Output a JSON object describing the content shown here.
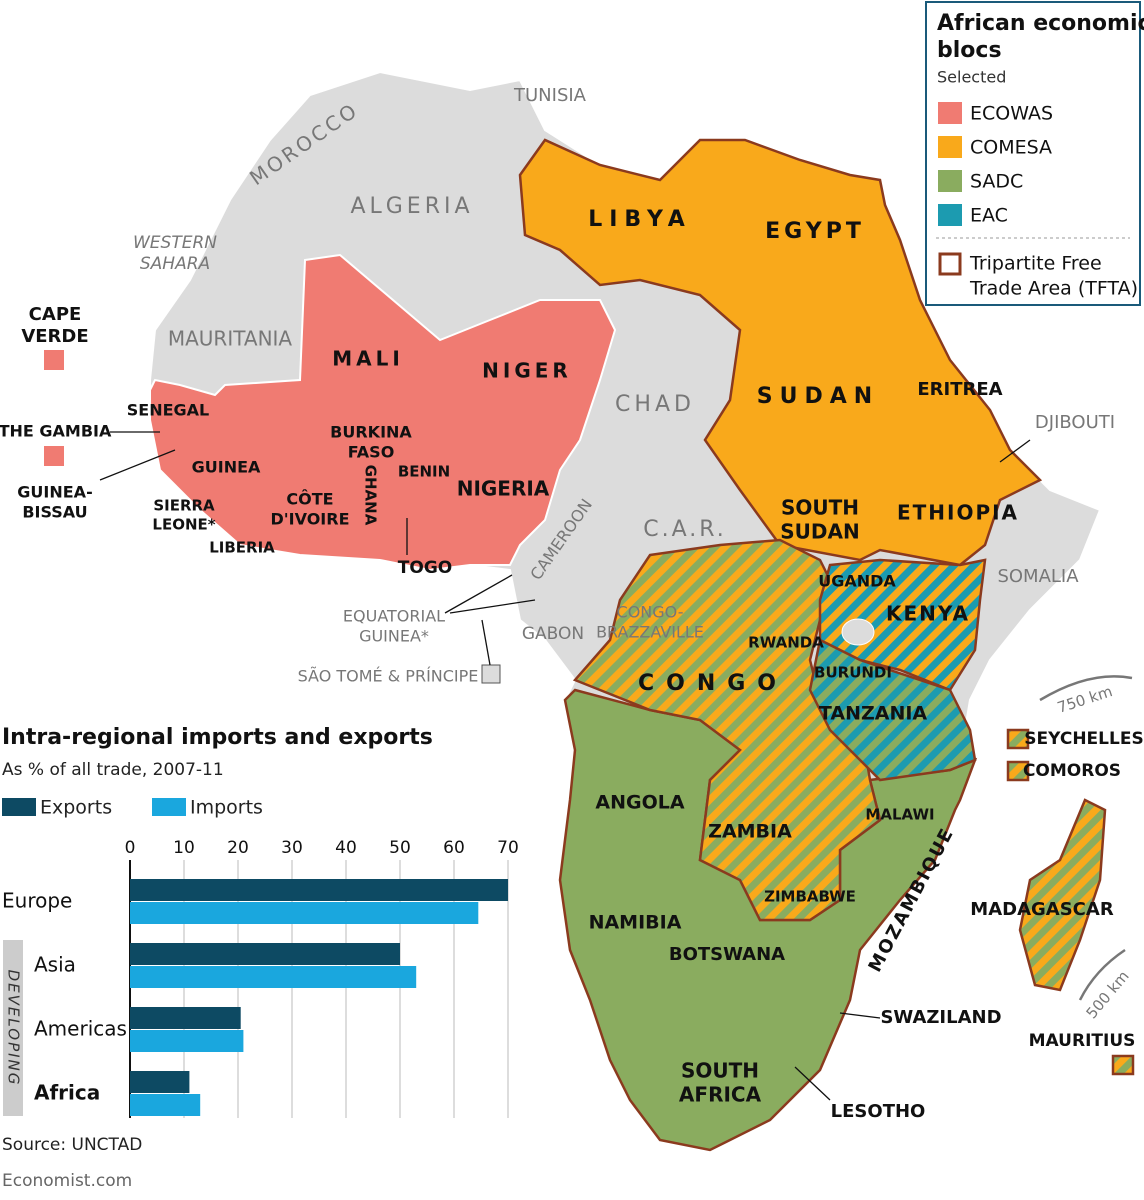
{
  "legend": {
    "title": [
      "African economic",
      "blocs"
    ],
    "subtitle": "Selected",
    "items": [
      {
        "label": "ECOWAS",
        "color": "#f07b72"
      },
      {
        "label": "COMESA",
        "color": "#f9a91b"
      },
      {
        "label": "SADC",
        "color": "#8aac5f"
      },
      {
        "label": "EAC",
        "color": "#1c9bb0"
      }
    ],
    "tfta": [
      "Tripartite Free",
      "Trade Area (TFTA)"
    ],
    "tfta_color": "#8b3a1e"
  },
  "map": {
    "labels": [
      "MOROCCO",
      "TUNISIA",
      "ALGERIA",
      [
        "WESTERN",
        "SAHARA"
      ],
      "MAURITANIA",
      "MALI",
      "NIGER",
      "CHAD",
      "LIBYA",
      "EGYPT",
      "SUDAN",
      "ERITREA",
      "DJIBOUTI",
      "ETHIOPIA",
      [
        "SOUTH",
        "SUDAN"
      ],
      "C.A.R.",
      "SOMALIA",
      "SENEGAL",
      "THE GAMBIA",
      [
        "CAPE",
        "VERDE"
      ],
      [
        "GUINEA-",
        "BISSAU"
      ],
      "GUINEA",
      [
        "SIERRA",
        "LEONE*"
      ],
      "LIBERIA",
      [
        "CÔTE",
        "D'IVOIRE"
      ],
      "GHANA",
      [
        "BURKINA",
        "FASO"
      ],
      "BENIN",
      "TOGO",
      "NIGERIA",
      "CAMEROON",
      [
        "EQUATORIAL",
        "GUINEA*"
      ],
      "SÃO TOMÉ & PRÍNCIPE",
      "GABON",
      [
        "CONGO-",
        "BRAZZAVILLE"
      ],
      "UGANDA",
      "KENYA",
      "RWANDA",
      "BURUNDI",
      "CONGO",
      "TANZANIA",
      "ANGOLA",
      "ZAMBIA",
      "MALAWI",
      "MOZAMBIQUE",
      "ZIMBABWE",
      "NAMIBIA",
      "BOTSWANA",
      "MADAGASCAR",
      "SWAZILAND",
      [
        "SOUTH",
        "AFRICA"
      ],
      "LESOTHO",
      "SEYCHELLES",
      "COMOROS",
      "MAURITIUS",
      "750 km",
      "500 km"
    ]
  },
  "chart_data": {
    "type": "bar",
    "orientation": "horizontal",
    "title": "Intra-regional imports and exports",
    "subtitle": "As % of all trade, 2007-11",
    "categories": [
      "Europe",
      "Asia",
      "Americas",
      "Africa"
    ],
    "group_label": "DEVELOPING",
    "series": [
      {
        "name": "Exports",
        "color": "#0d4a63",
        "values": [
          70,
          50,
          20.5,
          11
        ]
      },
      {
        "name": "Imports",
        "color": "#1aa7de",
        "values": [
          64.5,
          53,
          21,
          13
        ]
      }
    ],
    "xlim": [
      0,
      70
    ],
    "xticks": [
      0,
      10,
      20,
      30,
      40,
      50,
      60,
      70
    ],
    "grid": true
  },
  "source": "Source: UNCTAD",
  "credit": "Economist.com"
}
